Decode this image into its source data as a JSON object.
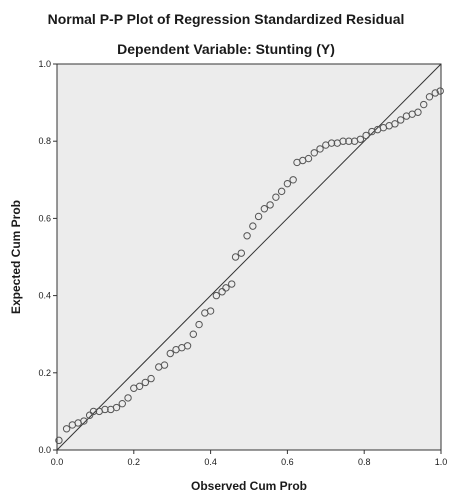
{
  "chart_data": {
    "type": "scatter",
    "title": "Normal P-P Plot of Regression Standardized Residual",
    "subtitle": "Dependent Variable: Stunting (Y)",
    "xlabel": "Observed Cum Prob",
    "ylabel": "Expected Cum Prob",
    "xlim": [
      0,
      1
    ],
    "ylim": [
      0,
      1
    ],
    "xticks": [
      "0.0",
      "0.2",
      "0.4",
      "0.6",
      "0.8",
      "1.0"
    ],
    "yticks": [
      "0.0",
      "0.2",
      "0.4",
      "0.6",
      "0.8",
      "1.0"
    ],
    "reference_line": [
      [
        0,
        0
      ],
      [
        1,
        1
      ]
    ],
    "colors": {
      "plot_background": "#ececec",
      "marker_stroke": "#555555",
      "line": "#333333"
    },
    "points": [
      [
        0.005,
        0.025
      ],
      [
        0.025,
        0.055
      ],
      [
        0.04,
        0.065
      ],
      [
        0.055,
        0.07
      ],
      [
        0.07,
        0.075
      ],
      [
        0.085,
        0.09
      ],
      [
        0.095,
        0.1
      ],
      [
        0.11,
        0.1
      ],
      [
        0.125,
        0.105
      ],
      [
        0.14,
        0.105
      ],
      [
        0.155,
        0.11
      ],
      [
        0.17,
        0.12
      ],
      [
        0.185,
        0.135
      ],
      [
        0.2,
        0.16
      ],
      [
        0.215,
        0.165
      ],
      [
        0.23,
        0.175
      ],
      [
        0.245,
        0.185
      ],
      [
        0.265,
        0.215
      ],
      [
        0.28,
        0.22
      ],
      [
        0.295,
        0.25
      ],
      [
        0.31,
        0.26
      ],
      [
        0.325,
        0.265
      ],
      [
        0.34,
        0.27
      ],
      [
        0.355,
        0.3
      ],
      [
        0.37,
        0.325
      ],
      [
        0.385,
        0.355
      ],
      [
        0.4,
        0.36
      ],
      [
        0.415,
        0.4
      ],
      [
        0.43,
        0.41
      ],
      [
        0.44,
        0.42
      ],
      [
        0.455,
        0.43
      ],
      [
        0.465,
        0.5
      ],
      [
        0.48,
        0.51
      ],
      [
        0.495,
        0.555
      ],
      [
        0.51,
        0.58
      ],
      [
        0.525,
        0.605
      ],
      [
        0.54,
        0.625
      ],
      [
        0.555,
        0.635
      ],
      [
        0.57,
        0.655
      ],
      [
        0.585,
        0.67
      ],
      [
        0.6,
        0.69
      ],
      [
        0.615,
        0.7
      ],
      [
        0.625,
        0.745
      ],
      [
        0.64,
        0.75
      ],
      [
        0.655,
        0.755
      ],
      [
        0.67,
        0.77
      ],
      [
        0.685,
        0.78
      ],
      [
        0.7,
        0.79
      ],
      [
        0.715,
        0.795
      ],
      [
        0.73,
        0.795
      ],
      [
        0.745,
        0.8
      ],
      [
        0.76,
        0.8
      ],
      [
        0.775,
        0.8
      ],
      [
        0.79,
        0.805
      ],
      [
        0.805,
        0.815
      ],
      [
        0.82,
        0.825
      ],
      [
        0.835,
        0.83
      ],
      [
        0.85,
        0.835
      ],
      [
        0.865,
        0.84
      ],
      [
        0.88,
        0.845
      ],
      [
        0.895,
        0.855
      ],
      [
        0.91,
        0.865
      ],
      [
        0.925,
        0.87
      ],
      [
        0.94,
        0.875
      ],
      [
        0.955,
        0.895
      ],
      [
        0.97,
        0.915
      ],
      [
        0.985,
        0.925
      ],
      [
        0.998,
        0.93
      ]
    ]
  }
}
